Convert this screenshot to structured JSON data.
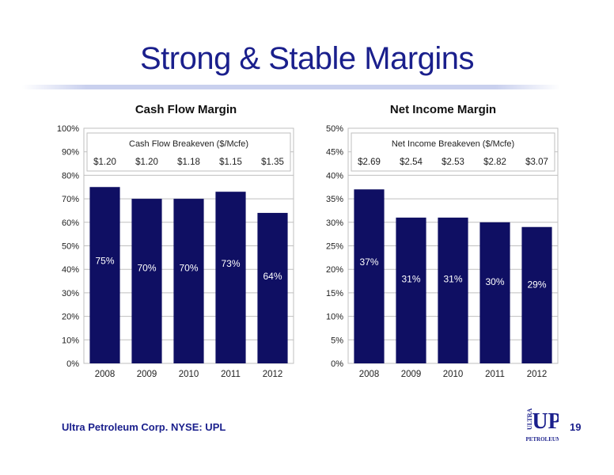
{
  "slide": {
    "title": "Strong & Stable Margins",
    "footer": "Ultra Petroleum Corp. NYSE: UPL",
    "page_number": "19",
    "logo": {
      "top": "UP",
      "side": "ULTRA",
      "bottom": "PETROLEUM"
    }
  },
  "colors": {
    "bar": "#0f0f63",
    "title": "#1a1f8c",
    "grid": "#bfbfbf"
  },
  "chart_data": [
    {
      "type": "bar",
      "title": "Cash Flow Margin",
      "annotation_title": "Cash Flow Breakeven ($/Mcfe)",
      "categories": [
        "2008",
        "2009",
        "2010",
        "2011",
        "2012"
      ],
      "values": [
        75,
        70,
        70,
        73,
        64
      ],
      "data_labels": [
        "75%",
        "70%",
        "70%",
        "73%",
        "64%"
      ],
      "breakeven_labels": [
        "$1.20",
        "$1.20",
        "$1.18",
        "$1.15",
        "$1.35"
      ],
      "yticks": [
        "0%",
        "10%",
        "20%",
        "30%",
        "40%",
        "50%",
        "60%",
        "70%",
        "80%",
        "90%",
        "100%"
      ],
      "ylim": [
        0,
        100
      ],
      "grid": true
    },
    {
      "type": "bar",
      "title": "Net Income Margin",
      "annotation_title": "Net Income Breakeven ($/Mcfe)",
      "categories": [
        "2008",
        "2009",
        "2010",
        "2011",
        "2012"
      ],
      "values": [
        37,
        31,
        31,
        30,
        29
      ],
      "data_labels": [
        "37%",
        "31%",
        "31%",
        "30%",
        "29%"
      ],
      "breakeven_labels": [
        "$2.69",
        "$2.54",
        "$2.53",
        "$2.82",
        "$3.07"
      ],
      "yticks": [
        "0%",
        "5%",
        "10%",
        "15%",
        "20%",
        "25%",
        "30%",
        "35%",
        "40%",
        "45%",
        "50%"
      ],
      "ylim": [
        0,
        50
      ],
      "grid": true
    }
  ]
}
